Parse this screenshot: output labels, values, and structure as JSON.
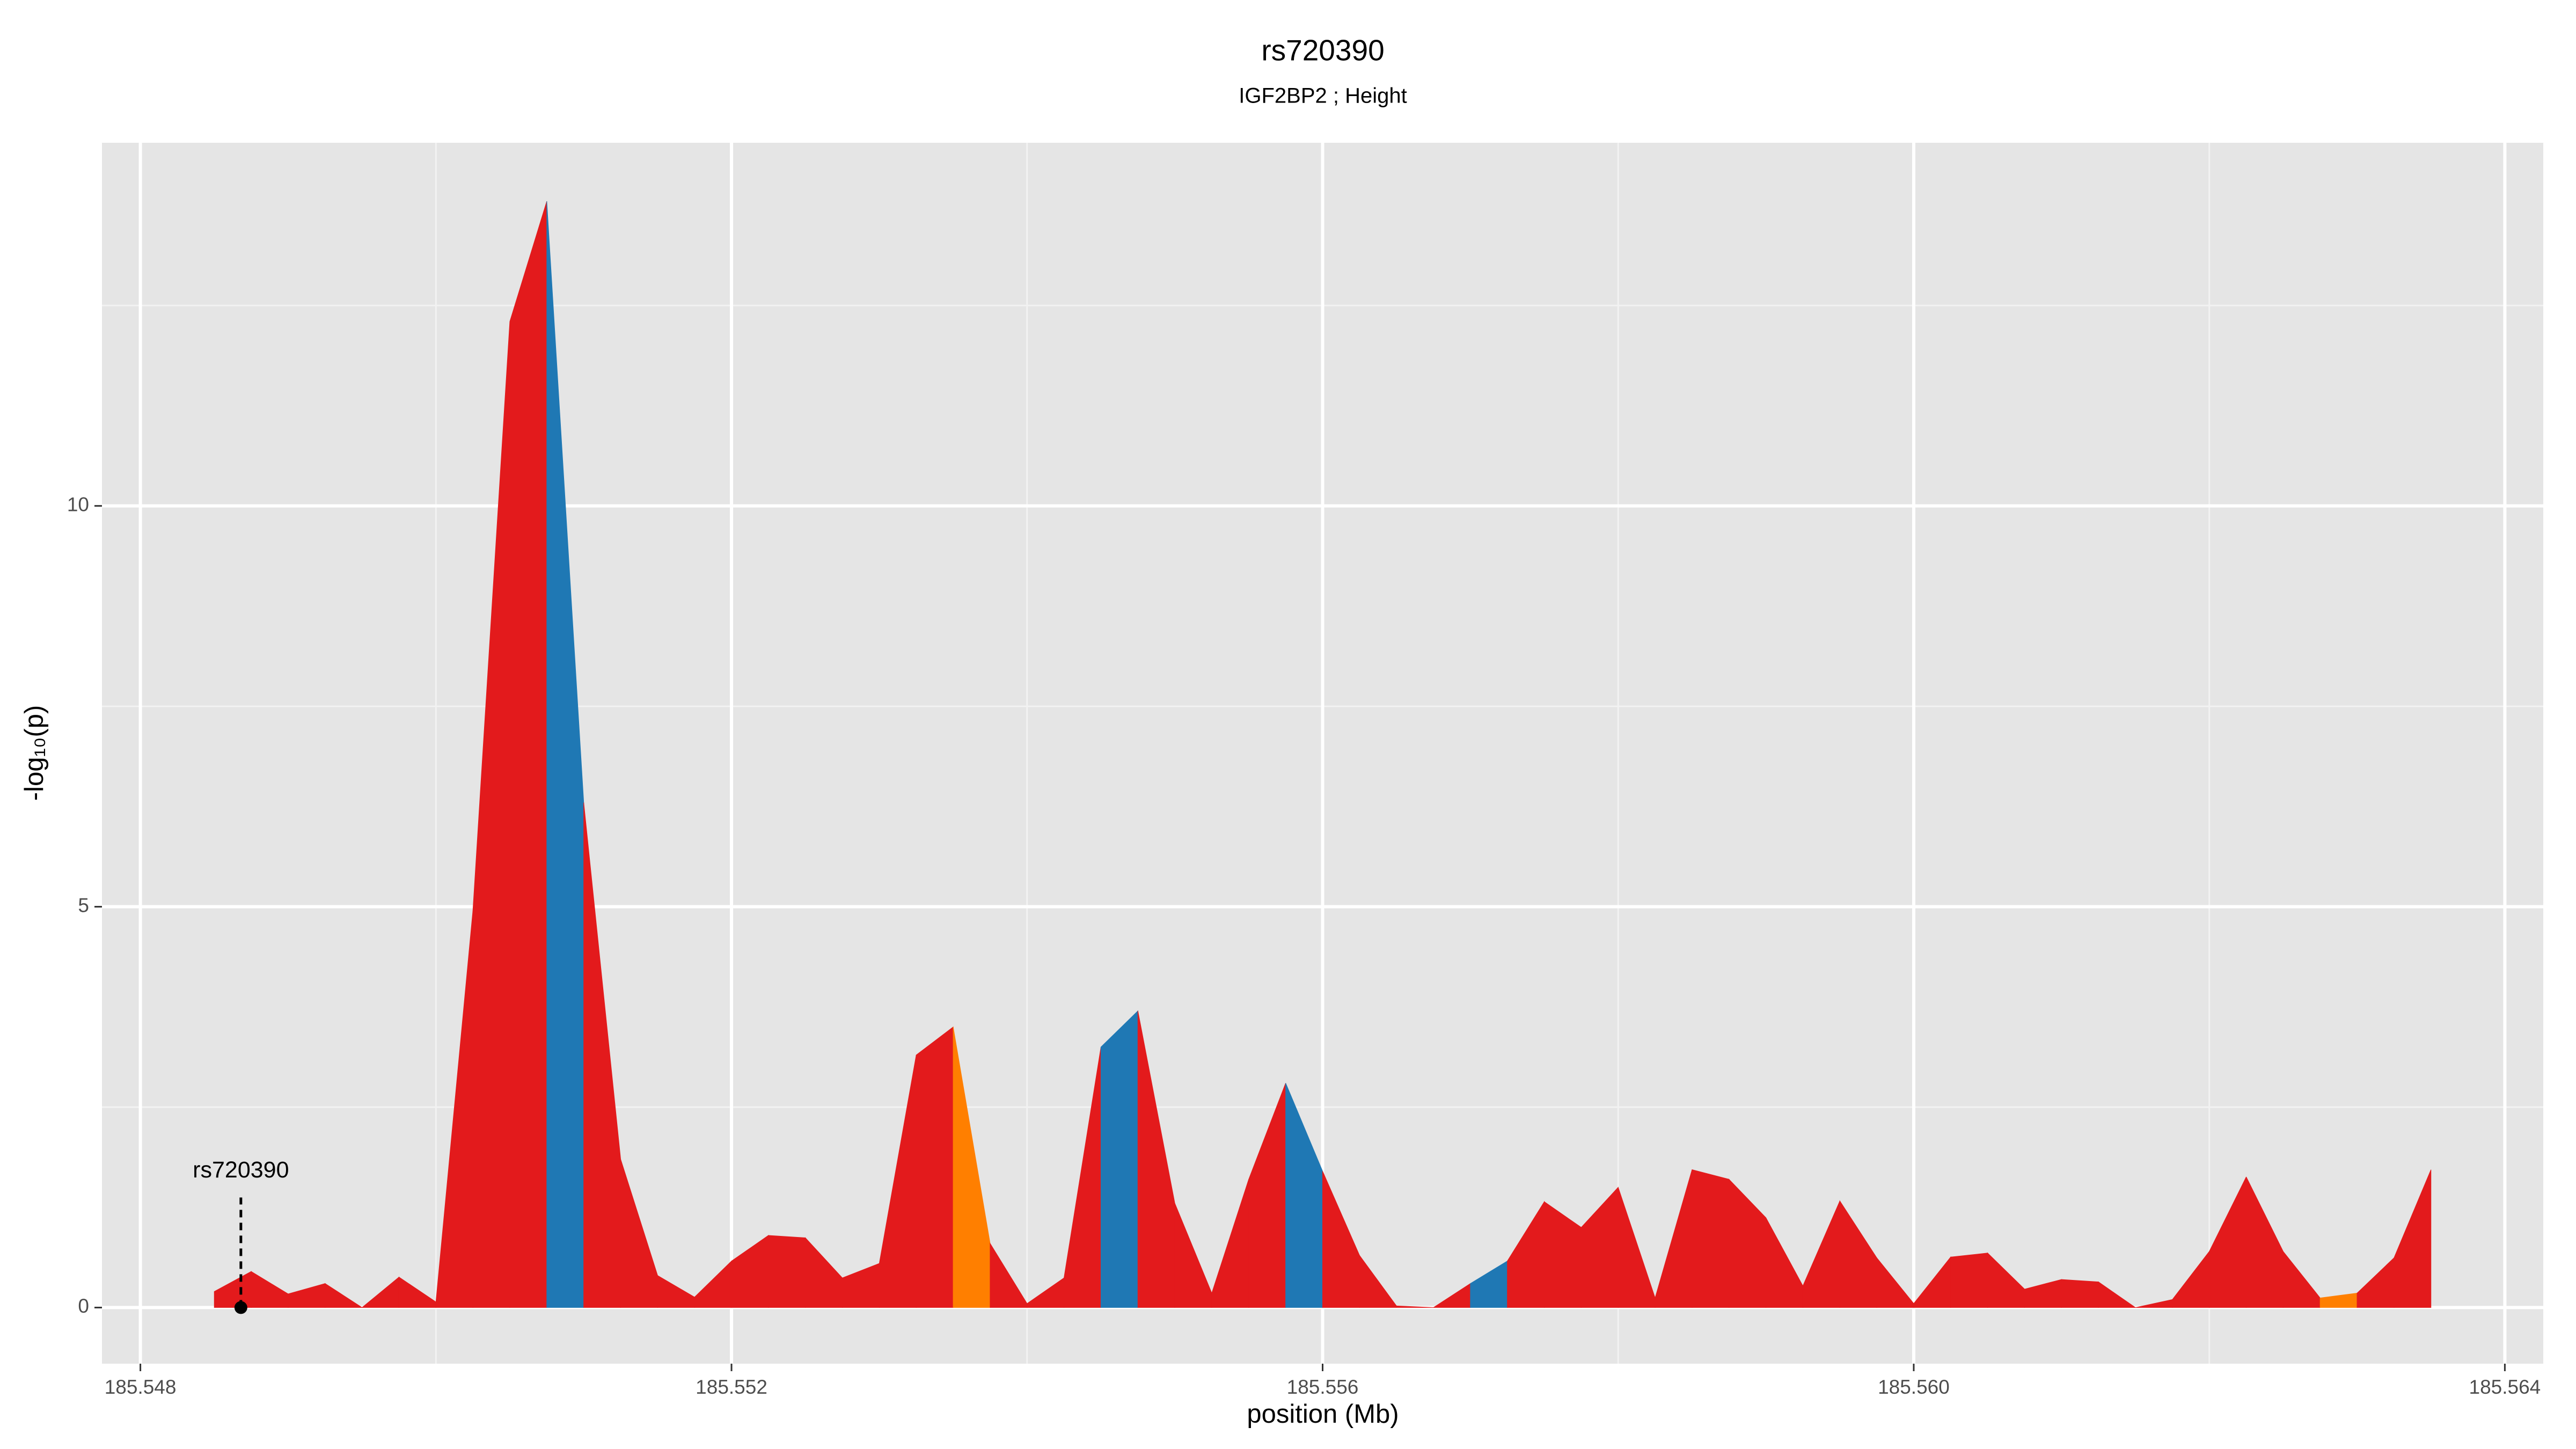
{
  "chart_data": {
    "type": "area",
    "title": "rs720390",
    "subtitle": "IGF2BP2 ; Height",
    "x_label": "position (Mb)",
    "y_label": "-log₁₀(p)",
    "x": [
      185.5485,
      185.54875,
      185.549,
      185.54925,
      185.5495,
      185.54975,
      185.55,
      185.55025,
      185.5505,
      185.55075,
      185.551,
      185.55125,
      185.5515,
      185.55175,
      185.552,
      185.55225,
      185.5525,
      185.55275,
      185.553,
      185.55325,
      185.5535,
      185.55375,
      185.554,
      185.55425,
      185.5545,
      185.55475,
      185.555,
      185.55525,
      185.5555,
      185.55575,
      185.556,
      185.55625,
      185.5565,
      185.55675,
      185.557,
      185.55725,
      185.5575,
      185.55775,
      185.558,
      185.55825,
      185.5585,
      185.55875,
      185.559,
      185.55925,
      185.5595,
      185.55975,
      185.56,
      185.56025,
      185.5605,
      185.56075,
      185.561,
      185.56125,
      185.5615,
      185.56175,
      185.562,
      185.56225,
      185.5625,
      185.56275,
      185.563,
      185.56325,
      185.5635
    ],
    "values": [
      0.2,
      0.45,
      0.17,
      0.3,
      0.0,
      0.38,
      0.07,
      4.95,
      12.3,
      13.8,
      6.3,
      1.85,
      0.4,
      0.13,
      0.58,
      0.9,
      0.87,
      0.37,
      0.55,
      3.15,
      3.5,
      0.8,
      0.05,
      0.37,
      3.25,
      3.7,
      1.3,
      0.18,
      1.6,
      2.8,
      1.7,
      0.65,
      0.02,
      0.0,
      0.3,
      0.58,
      1.32,
      1.0,
      1.5,
      0.12,
      1.72,
      1.6,
      1.12,
      0.27,
      1.33,
      0.62,
      0.05,
      0.63,
      0.68,
      0.23,
      0.35,
      0.32,
      0.0,
      0.1,
      0.7,
      1.63,
      0.7,
      0.12,
      0.18,
      0.62,
      1.72
    ],
    "segment_colors": [
      "#e31a1c",
      "#e31a1c",
      "#e31a1c",
      "#e31a1c",
      "#e31a1c",
      "#e31a1c",
      "#e31a1c",
      "#e31a1c",
      "#e31a1c",
      "#1f78b4",
      "#e31a1c",
      "#e31a1c",
      "#e31a1c",
      "#e31a1c",
      "#e31a1c",
      "#e31a1c",
      "#e31a1c",
      "#e31a1c",
      "#e31a1c",
      "#e31a1c",
      "#ff7f00",
      "#e31a1c",
      "#e31a1c",
      "#e31a1c",
      "#1f78b4",
      "#e31a1c",
      "#e31a1c",
      "#e31a1c",
      "#e31a1c",
      "#1f78b4",
      "#e31a1c",
      "#e31a1c",
      "#e31a1c",
      "#e31a1c",
      "#1f78b4",
      "#e31a1c",
      "#e31a1c",
      "#e31a1c",
      "#e31a1c",
      "#e31a1c",
      "#e31a1c",
      "#e31a1c",
      "#e31a1c",
      "#e31a1c",
      "#e31a1c",
      "#e31a1c",
      "#e31a1c",
      "#e31a1c",
      "#e31a1c",
      "#e31a1c",
      "#e31a1c",
      "#e31a1c",
      "#e31a1c",
      "#e31a1c",
      "#e31a1c",
      "#e31a1c",
      "#e31a1c",
      "#ff7f00",
      "#e31a1c",
      "#e31a1c"
    ],
    "annotation": {
      "text": "rs720390",
      "x": 185.54868,
      "y": 0
    },
    "xlim": [
      185.54774,
      185.56426
    ],
    "ylim": [
      -0.7,
      14.53
    ],
    "xticks": [
      185.548,
      185.552,
      185.556,
      {
        "value": 185.56,
        "label": "185.560"
      },
      185.564
    ],
    "x_minor_ticks": [
      185.55,
      185.554,
      185.558,
      185.562
    ],
    "yticks": [
      0,
      5,
      10
    ],
    "y_minor_ticks": [
      2.5,
      7.5,
      12.5
    ],
    "grid": true
  }
}
